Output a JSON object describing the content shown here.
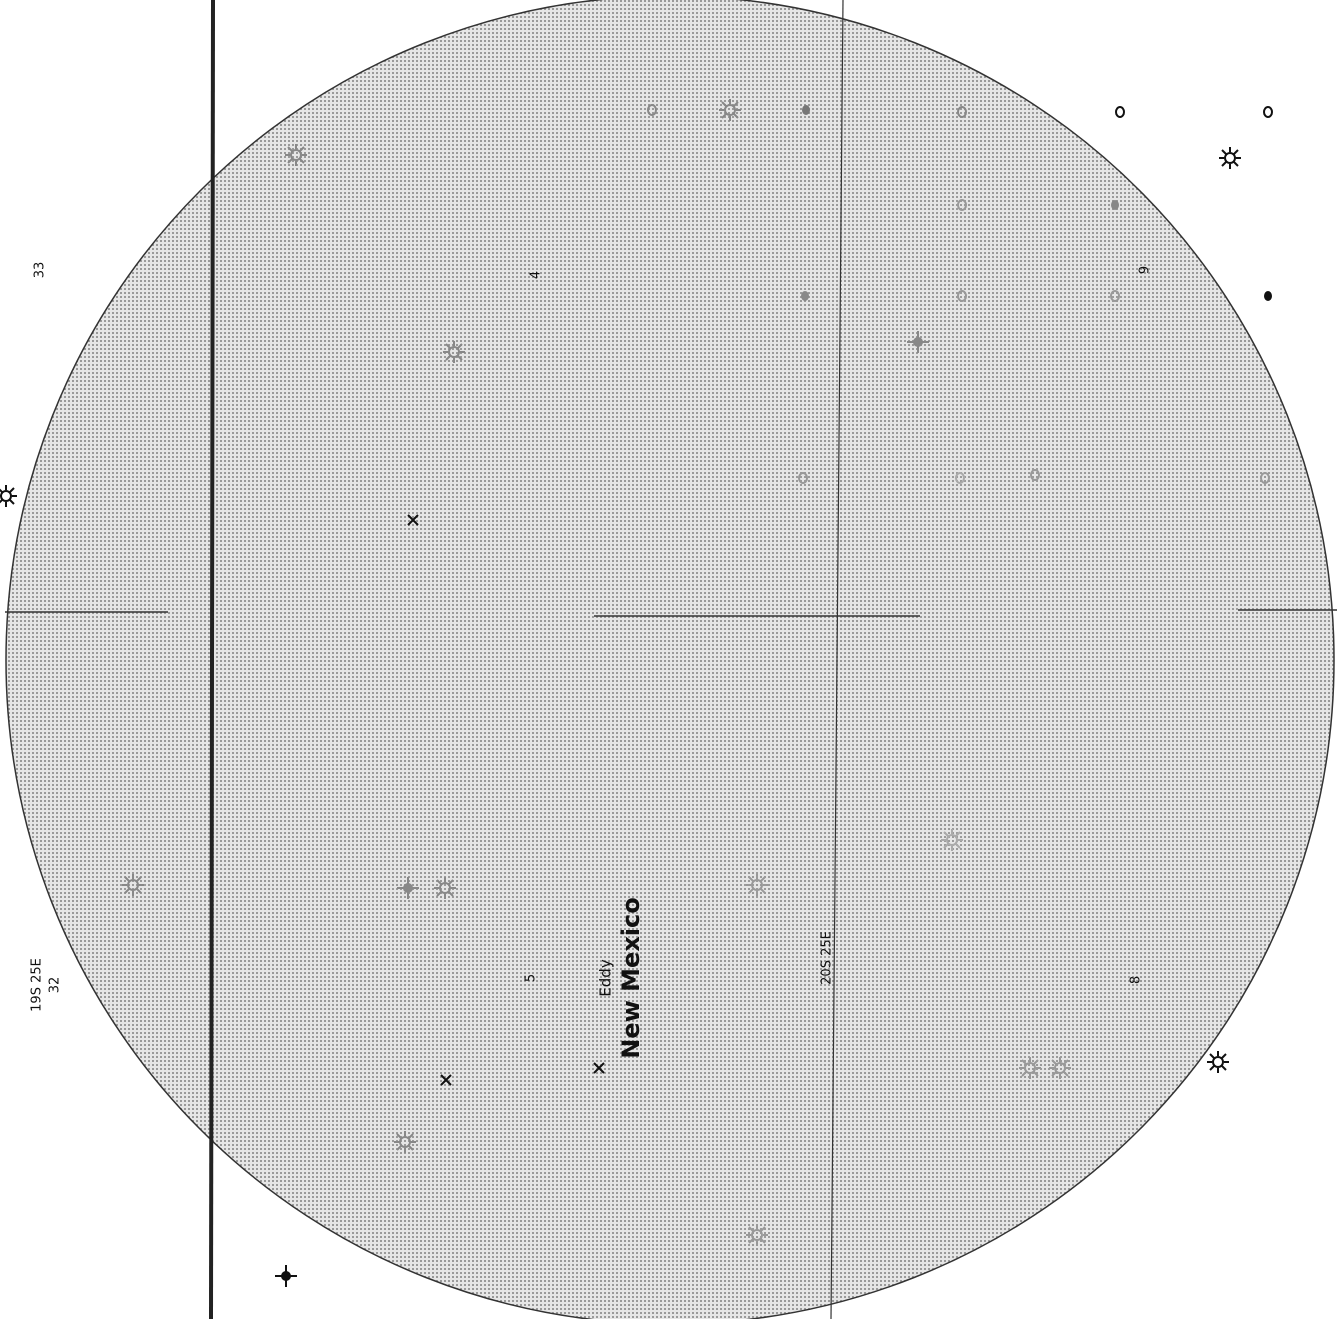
{
  "map": {
    "township_labels": [
      "19S 25E",
      "20S 25E"
    ],
    "section_numbers": [
      "33",
      "32",
      "4",
      "5",
      "9",
      "8"
    ],
    "county": "Eddy",
    "state": "New Mexico"
  }
}
